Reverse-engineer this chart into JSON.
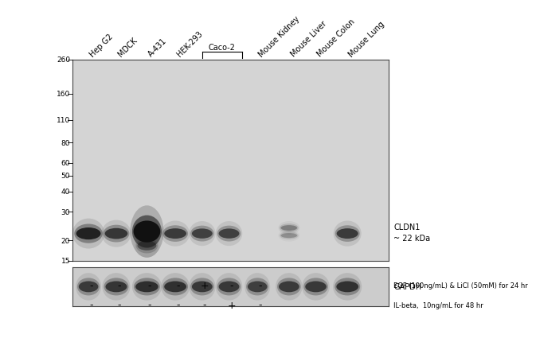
{
  "bg_color_main": "#d4d4d4",
  "bg_color_gapdh": "#cccccc",
  "white_bg": "#ffffff",
  "lane_labels_unique": [
    "Hep G2",
    "MDCK",
    "A-431",
    "HEK-293",
    "Mouse Kidney",
    "Mouse Liver",
    "Mouse Colon",
    "Mouse Lung"
  ],
  "lane_labels_idx": [
    0,
    1,
    2,
    3,
    6,
    7,
    8,
    9
  ],
  "caco2_label": "Caco-2",
  "caco2_lanes": [
    4,
    5
  ],
  "mw_markers": [
    260,
    160,
    110,
    80,
    60,
    50,
    40,
    30,
    20,
    15
  ],
  "annotation_cldn1": "CLDN1\n~ 22 kDa",
  "annotation_gapdh": "GAPDH",
  "egf_signs": [
    "-",
    "-",
    "-",
    "-",
    "+",
    "-",
    "-"
  ],
  "il_signs": [
    "-",
    "-",
    "-",
    "-",
    "-",
    "+",
    "-"
  ],
  "egf_label": "EGF (100ng/mL) & LiCl (50mM) for 24 hr",
  "il_label": "IL-beta,  10ng/mL for 48 hr",
  "tick_label_size": 6.5,
  "label_font_size": 7,
  "annot_font_size": 7
}
